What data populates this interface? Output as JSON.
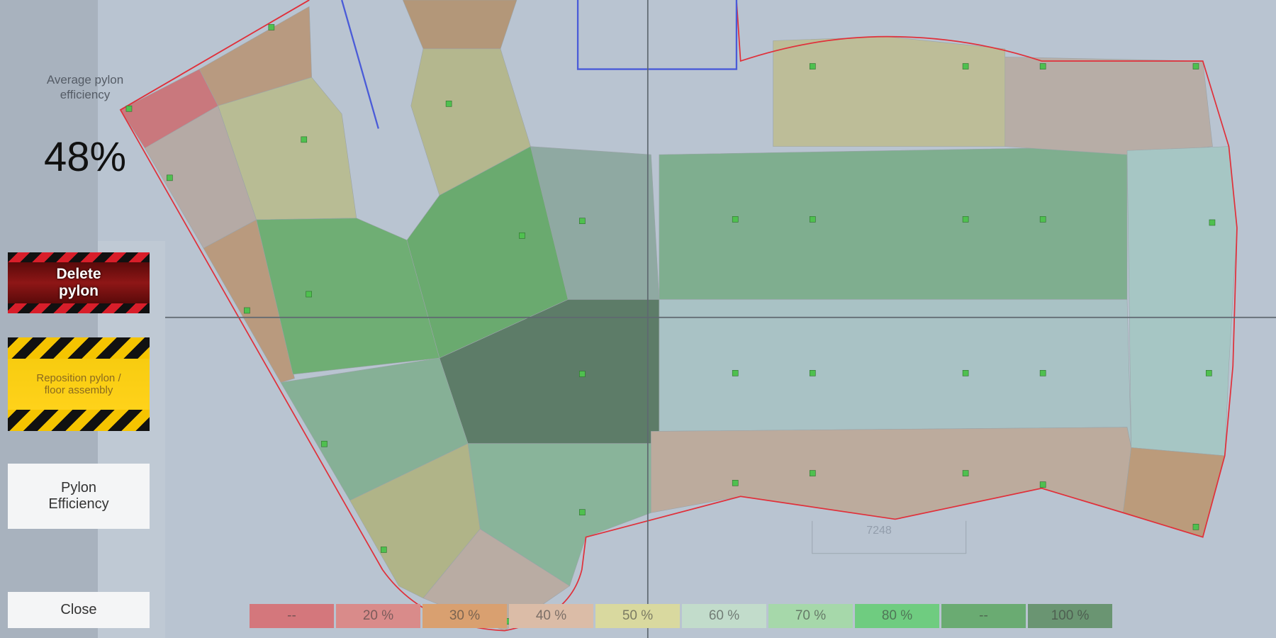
{
  "panel": {
    "average_label": "Average pylon efficiency",
    "average_value": "48%"
  },
  "buttons": [
    "Delete pylon",
    "Reposition pylon / floor assembly",
    "Pylon Efficiency",
    "Close"
  ],
  "dimension_label": "7248",
  "legend": [
    {
      "label": "--",
      "color": "#d4777c"
    },
    {
      "label": "20 %",
      "color": "#d98b8a"
    },
    {
      "label": "30 %",
      "color": "#d9a070"
    },
    {
      "label": "40 %",
      "color": "#dbbca7"
    },
    {
      "label": "50 %",
      "color": "#d9d99f"
    },
    {
      "label": "60 %",
      "color": "#c2dccb"
    },
    {
      "label": "70 %",
      "color": "#a6d8aa"
    },
    {
      "label": "80 %",
      "color": "#6fcc80"
    },
    {
      "label": "--",
      "color": "#6aab72"
    },
    {
      "label": "100 %",
      "color": "#6a9572"
    }
  ]
}
